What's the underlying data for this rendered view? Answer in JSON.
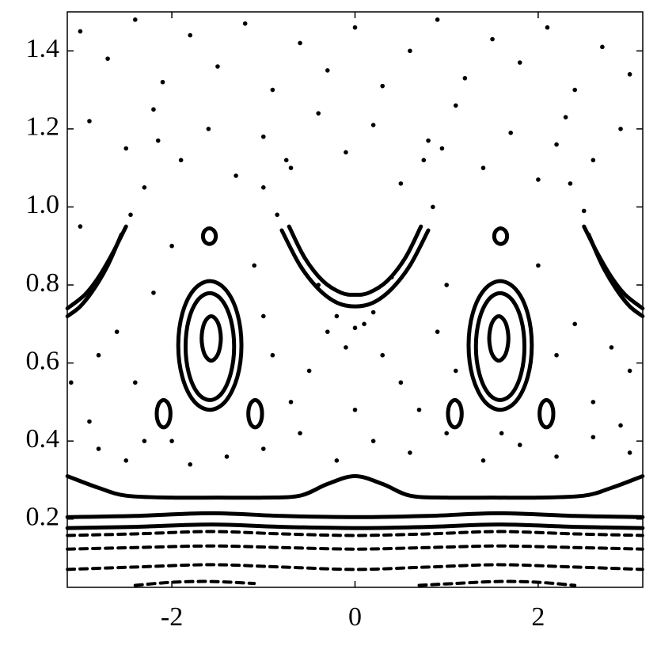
{
  "chart_data": {
    "type": "scatter",
    "color": "#000000",
    "xlim": [
      -3.1416,
      3.1416
    ],
    "ylim": [
      0.025,
      1.5
    ],
    "xticks": [
      -2,
      0,
      2
    ],
    "yticks": [
      0.2,
      0.4,
      0.6,
      0.8,
      {
        "value": 1,
        "label": "1.0"
      },
      1.2,
      1.4
    ],
    "series": [
      {
        "mode": "points",
        "x": [
          -3.0,
          -2.7,
          -2.4,
          -2.1,
          -1.8,
          -1.5,
          -1.2,
          -0.9,
          -0.6,
          -0.3,
          0,
          0.3,
          0.6,
          0.9,
          1.2,
          1.5,
          1.8,
          2.1,
          2.4,
          2.7,
          3.0,
          -2.9,
          -2.5,
          -2.2,
          -1.9,
          -1.6,
          -1.3,
          -1.0,
          -0.7,
          -0.4,
          -0.1,
          0.2,
          0.5,
          0.8,
          1.1,
          1.4,
          1.7,
          2.0,
          2.3,
          2.6,
          2.9,
          -2.15,
          -2.3,
          -2.45,
          -1.0,
          -0.85,
          -0.75,
          0.75,
          0.85,
          0.95,
          2.2,
          2.35,
          2.5,
          -3.0,
          -2.8,
          -2.6,
          -3.1,
          -2.9,
          -2.4,
          -2.2,
          -2.0,
          -2.3,
          -1.1,
          -0.9,
          -1.0,
          -0.7,
          -0.5,
          -0.3,
          -0.1,
          0.1,
          0.3,
          0.5,
          0.7,
          0.9,
          1.0,
          1.1,
          2.0,
          2.2,
          2.4,
          2.6,
          2.8,
          3.0,
          2.9,
          -0.4,
          0.4,
          -0.2,
          0.2,
          0,
          -2.8,
          -2.5,
          -2.0,
          -1.4,
          -1.0,
          -0.6,
          -0.2,
          0.2,
          0.6,
          1.0,
          1.4,
          1.8,
          2.2,
          2.6,
          3.0,
          -1.8,
          0.0,
          1.6
        ],
        "values": [
          1.45,
          1.38,
          1.48,
          1.32,
          1.44,
          1.36,
          1.47,
          1.3,
          1.42,
          1.35,
          1.46,
          1.31,
          1.4,
          1.48,
          1.33,
          1.43,
          1.37,
          1.46,
          1.3,
          1.41,
          1.34,
          1.22,
          1.15,
          1.25,
          1.12,
          1.2,
          1.08,
          1.18,
          1.1,
          1.24,
          1.14,
          1.21,
          1.06,
          1.17,
          1.26,
          1.1,
          1.19,
          1.07,
          1.23,
          1.12,
          1.2,
          1.17,
          1.05,
          0.98,
          1.05,
          0.98,
          1.12,
          1.12,
          1.0,
          1.15,
          1.16,
          1.06,
          0.99,
          0.95,
          0.62,
          0.68,
          0.55,
          0.45,
          0.55,
          0.78,
          0.9,
          0.4,
          0.85,
          0.62,
          0.72,
          0.5,
          0.58,
          0.68,
          0.64,
          0.7,
          0.62,
          0.55,
          0.48,
          0.68,
          0.8,
          0.58,
          0.85,
          0.62,
          0.7,
          0.5,
          0.64,
          0.58,
          0.44,
          0.8,
          0.82,
          0.72,
          0.73,
          0.69,
          0.38,
          0.35,
          0.4,
          0.36,
          0.38,
          0.42,
          0.35,
          0.4,
          0.37,
          0.42,
          0.35,
          0.39,
          0.36,
          0.41,
          0.37,
          0.34,
          0.48,
          0.42
        ]
      },
      {
        "mode": "line",
        "x": [
          -3.14,
          -2.8,
          -2.5,
          -2,
          -1.5,
          -1,
          -0.6,
          -0.3,
          0,
          0.3,
          0.6,
          1,
          1.5,
          2,
          2.5,
          2.8,
          3.14
        ],
        "values": [
          0.31,
          0.28,
          0.26,
          0.255,
          0.255,
          0.255,
          0.26,
          0.29,
          0.31,
          0.29,
          0.26,
          0.255,
          0.255,
          0.255,
          0.26,
          0.28,
          0.31
        ]
      },
      {
        "mode": "line",
        "x": [
          -3.14,
          -2.4,
          -1.57,
          -0.8,
          0,
          0.8,
          1.57,
          2.4,
          3.14
        ],
        "values": [
          0.205,
          0.208,
          0.215,
          0.208,
          0.205,
          0.208,
          0.215,
          0.208,
          0.205
        ]
      },
      {
        "mode": "line",
        "x": [
          -3.14,
          -2.4,
          -1.57,
          -0.8,
          0,
          0.8,
          1.57,
          2.4,
          3.14
        ],
        "values": [
          0.177,
          0.18,
          0.186,
          0.18,
          0.177,
          0.18,
          0.186,
          0.18,
          0.177
        ]
      },
      {
        "mode": "dashed",
        "x": [
          -3.14,
          -2.4,
          -1.57,
          -0.8,
          0,
          0.8,
          1.57,
          2.4,
          3.14
        ],
        "values": [
          0.158,
          0.162,
          0.168,
          0.162,
          0.158,
          0.162,
          0.168,
          0.162,
          0.158
        ]
      },
      {
        "mode": "dashed",
        "x": [
          -3.14,
          -2.4,
          -1.57,
          -0.8,
          0,
          0.8,
          1.57,
          2.4,
          3.14
        ],
        "values": [
          0.123,
          0.127,
          0.131,
          0.127,
          0.123,
          0.127,
          0.131,
          0.127,
          0.123
        ]
      },
      {
        "mode": "dashed",
        "x": [
          -3.14,
          -2.4,
          -1.57,
          -0.8,
          0,
          0.8,
          1.57,
          2.4,
          3.14
        ],
        "values": [
          0.071,
          0.077,
          0.083,
          0.077,
          0.071,
          0.077,
          0.083,
          0.077,
          0.071
        ]
      },
      {
        "mode": "dashed",
        "x": [
          -2.4,
          -2,
          -1.57,
          -1.1
        ],
        "values": [
          0.03,
          0.038,
          0.04,
          0.035
        ]
      },
      {
        "mode": "dashed",
        "x": [
          0.7,
          1.1,
          1.57,
          2.0,
          2.4
        ],
        "values": [
          0.03,
          0.035,
          0.04,
          0.038,
          0.03
        ]
      },
      {
        "mode": "line",
        "x": [
          -0.8,
          -0.6,
          -0.4,
          -0.2,
          0,
          0.2,
          0.4,
          0.6,
          0.8
        ],
        "values": [
          0.94,
          0.85,
          0.79,
          0.755,
          0.745,
          0.755,
          0.79,
          0.85,
          0.94
        ]
      },
      {
        "mode": "line",
        "x": [
          -0.72,
          -0.55,
          -0.35,
          -0.15,
          0,
          0.15,
          0.35,
          0.55,
          0.72
        ],
        "values": [
          0.95,
          0.87,
          0.81,
          0.78,
          0.775,
          0.78,
          0.81,
          0.87,
          0.95
        ]
      },
      {
        "mode": "line",
        "x": [
          -3.14,
          -3.0,
          -2.85,
          -2.7,
          -2.55
        ],
        "values": [
          0.72,
          0.745,
          0.79,
          0.85,
          0.93
        ]
      },
      {
        "mode": "line",
        "x": [
          -3.14,
          -2.95,
          -2.8,
          -2.65,
          -2.5
        ],
        "values": [
          0.74,
          0.775,
          0.82,
          0.88,
          0.95
        ]
      },
      {
        "mode": "line",
        "x": [
          2.55,
          2.7,
          2.85,
          3.0,
          3.14
        ],
        "values": [
          0.93,
          0.85,
          0.79,
          0.745,
          0.72
        ]
      },
      {
        "mode": "line",
        "x": [
          2.5,
          2.65,
          2.8,
          2.95,
          3.14
        ],
        "values": [
          0.95,
          0.88,
          0.82,
          0.775,
          0.74
        ]
      },
      {
        "mode": "loop",
        "x": [
          -1.24,
          -1.286,
          -1.413,
          -1.585,
          -1.758,
          -1.884,
          -1.93,
          -1.884,
          -1.758,
          -1.585,
          -1.413,
          -1.286
        ],
        "values": [
          0.645,
          0.728,
          0.788,
          0.81,
          0.788,
          0.728,
          0.645,
          0.563,
          0.502,
          0.48,
          0.502,
          0.563
        ]
      },
      {
        "mode": "loop",
        "x": [
          -1.32,
          -1.356,
          -1.453,
          -1.585,
          -1.718,
          -1.815,
          -1.85,
          -1.815,
          -1.718,
          -1.585,
          -1.453,
          -1.356
        ],
        "values": [
          0.642,
          0.711,
          0.761,
          0.779,
          0.761,
          0.711,
          0.642,
          0.574,
          0.523,
          0.505,
          0.523,
          0.574
        ]
      },
      {
        "mode": "loop",
        "x": [
          -1.465,
          -1.496,
          -1.57,
          -1.644,
          -1.675,
          -1.644,
          -1.57,
          -1.496
        ],
        "values": [
          0.663,
          0.703,
          0.72,
          0.703,
          0.663,
          0.623,
          0.606,
          0.623
        ]
      },
      {
        "mode": "loop",
        "x": [
          1.24,
          1.286,
          1.413,
          1.585,
          1.758,
          1.884,
          1.93,
          1.884,
          1.758,
          1.585,
          1.413,
          1.286
        ],
        "values": [
          0.645,
          0.728,
          0.788,
          0.81,
          0.788,
          0.728,
          0.645,
          0.563,
          0.502,
          0.48,
          0.502,
          0.563
        ]
      },
      {
        "mode": "loop",
        "x": [
          1.32,
          1.356,
          1.453,
          1.585,
          1.718,
          1.815,
          1.85,
          1.815,
          1.718,
          1.585,
          1.453,
          1.356
        ],
        "values": [
          0.642,
          0.711,
          0.761,
          0.779,
          0.761,
          0.711,
          0.642,
          0.574,
          0.523,
          0.505,
          0.523,
          0.574
        ]
      },
      {
        "mode": "loop",
        "x": [
          1.465,
          1.496,
          1.57,
          1.644,
          1.675,
          1.644,
          1.57,
          1.496
        ],
        "values": [
          0.663,
          0.703,
          0.72,
          0.703,
          0.663,
          0.623,
          0.606,
          0.623
        ]
      },
      {
        "mode": "loop",
        "x": [
          -1.52,
          -1.54,
          -1.59,
          -1.64,
          -1.66,
          -1.64,
          -1.59,
          -1.54
        ],
        "values": [
          0.925,
          0.939,
          0.945,
          0.939,
          0.925,
          0.911,
          0.905,
          0.911
        ]
      },
      {
        "mode": "loop",
        "x": [
          1.66,
          1.64,
          1.59,
          1.54,
          1.52,
          1.54,
          1.59,
          1.64
        ],
        "values": [
          0.925,
          0.939,
          0.945,
          0.939,
          0.925,
          0.911,
          0.905,
          0.911
        ]
      },
      {
        "mode": "loop",
        "x": [
          -2.015,
          -2.037,
          -2.09,
          -2.143,
          -2.165,
          -2.143,
          -2.09,
          -2.037
        ],
        "values": [
          0.47,
          0.495,
          0.505,
          0.495,
          0.47,
          0.445,
          0.435,
          0.445
        ]
      },
      {
        "mode": "loop",
        "x": [
          -1.015,
          -1.037,
          -1.09,
          -1.143,
          -1.165,
          -1.143,
          -1.09,
          -1.037
        ],
        "values": [
          0.47,
          0.495,
          0.505,
          0.495,
          0.47,
          0.445,
          0.435,
          0.445
        ]
      },
      {
        "mode": "loop",
        "x": [
          1.165,
          1.143,
          1.09,
          1.037,
          1.015,
          1.037,
          1.09,
          1.143
        ],
        "values": [
          0.47,
          0.495,
          0.505,
          0.495,
          0.47,
          0.445,
          0.435,
          0.445
        ]
      },
      {
        "mode": "loop",
        "x": [
          2.165,
          2.143,
          2.09,
          2.037,
          2.015,
          2.037,
          2.09,
          2.143
        ],
        "values": [
          0.47,
          0.495,
          0.505,
          0.495,
          0.47,
          0.445,
          0.435,
          0.445
        ]
      }
    ]
  }
}
